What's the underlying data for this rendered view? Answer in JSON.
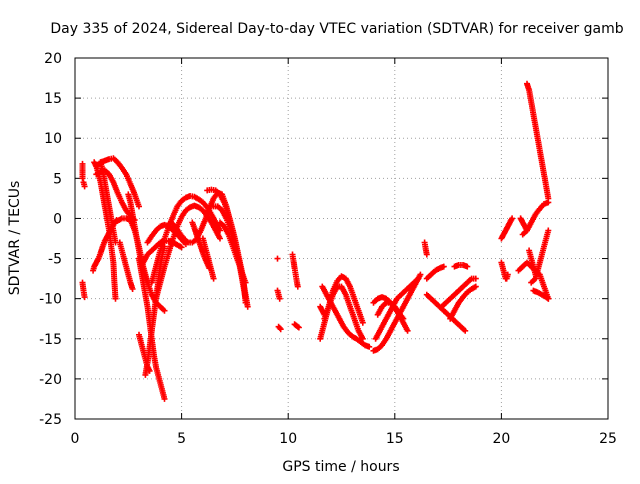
{
  "chart_data": {
    "type": "scatter",
    "title": "Day 335 of 2024, Sidereal Day-to-day VTEC variation (SDTVAR) for receiver gamb",
    "xlabel": "GPS time / hours",
    "ylabel": "SDTVAR / TECUs",
    "xlim": [
      0,
      25
    ],
    "ylim": [
      -25,
      20
    ],
    "xticks": [
      "0",
      "5",
      "10",
      "15",
      "20",
      "25"
    ],
    "yticks": [
      "-25",
      "-20",
      "-15",
      "-10",
      "-5",
      "0",
      "5",
      "10",
      "15",
      "20"
    ],
    "grid": true,
    "marker": "+",
    "color": "#ff0000",
    "series": [
      {
        "name": "s01",
        "x": [
          0.35,
          0.35
        ],
        "y": [
          6.8,
          5.0
        ]
      },
      {
        "name": "s02",
        "x": [
          0.4,
          0.45
        ],
        "y": [
          4.5,
          4.0
        ]
      },
      {
        "name": "s03",
        "x": [
          0.35,
          0.4,
          0.45
        ],
        "y": [
          -8.0,
          -9.0,
          -9.8
        ]
      },
      {
        "name": "s04",
        "x": [
          0.85,
          0.9,
          1.0,
          1.1,
          1.2,
          1.3,
          1.4,
          1.5,
          1.6,
          1.7,
          1.8,
          1.9,
          1.95
        ],
        "y": [
          -6.5,
          -6.0,
          -5.5,
          -5.0,
          -4.3,
          -3.5,
          -2.8,
          -2.3,
          -1.8,
          -1.2,
          -0.8,
          -0.4,
          -0.2
        ]
      },
      {
        "name": "s05",
        "x": [
          0.9,
          1.0,
          1.1,
          1.2,
          1.3,
          1.4,
          1.5,
          1.6,
          1.7,
          1.8,
          1.85,
          1.9
        ],
        "y": [
          7.0,
          6.5,
          5.5,
          4.5,
          3.0,
          1.5,
          0.0,
          -1.5,
          -3.5,
          -5.5,
          -8.0,
          -10.0
        ]
      },
      {
        "name": "s06",
        "x": [
          1.0,
          1.2,
          1.4,
          1.6,
          1.8,
          2.0,
          2.2,
          2.4,
          2.6,
          2.8,
          3.0
        ],
        "y": [
          6.5,
          7.0,
          7.2,
          7.4,
          7.5,
          7.0,
          6.3,
          5.5,
          4.3,
          3.0,
          1.5
        ]
      },
      {
        "name": "s07",
        "x": [
          1.0,
          1.2,
          1.4,
          1.6,
          1.8,
          2.0,
          2.2,
          2.4,
          2.6,
          2.8
        ],
        "y": [
          5.5,
          5.8,
          6.0,
          5.5,
          4.5,
          3.2,
          2.0,
          1.0,
          0.3,
          -0.2
        ]
      },
      {
        "name": "s08",
        "x": [
          1.2,
          1.3,
          1.4,
          1.5,
          1.6,
          1.7,
          1.8,
          1.9
        ],
        "y": [
          7.0,
          6.0,
          4.5,
          3.0,
          1.5,
          0.0,
          -1.5,
          -3.0
        ]
      },
      {
        "name": "s09",
        "x": [
          2.0,
          2.2,
          2.4,
          2.6,
          2.8,
          3.0,
          3.2,
          3.4,
          3.6,
          3.8,
          4.0,
          4.2
        ],
        "y": [
          -0.3,
          0.0,
          0.0,
          -0.2,
          -1.5,
          -3.5,
          -6.0,
          -8.0,
          -9.5,
          -10.5,
          -11.0,
          -11.5
        ]
      },
      {
        "name": "s10",
        "x": [
          2.1,
          2.2,
          2.3,
          2.4,
          2.5,
          2.6,
          2.7
        ],
        "y": [
          -3.0,
          -4.0,
          -5.0,
          -6.0,
          -7.0,
          -8.0,
          -8.8
        ]
      },
      {
        "name": "s11",
        "x": [
          2.5,
          2.6,
          2.7,
          2.8,
          2.9,
          3.0,
          3.1,
          3.2,
          3.4
        ],
        "y": [
          3.0,
          2.0,
          0.5,
          -1.0,
          -2.5,
          -4.0,
          -5.5,
          -6.5,
          -8.0
        ]
      },
      {
        "name": "s12",
        "x": [
          3.0,
          3.1,
          3.2,
          3.3,
          3.4,
          3.5,
          3.6,
          3.7,
          3.8,
          3.9,
          4.0,
          4.1,
          4.2
        ],
        "y": [
          -5.0,
          -6.5,
          -8.0,
          -9.5,
          -11.0,
          -13.0,
          -15.0,
          -17.0,
          -18.5,
          -19.5,
          -20.5,
          -21.5,
          -22.5
        ]
      },
      {
        "name": "s13",
        "x": [
          3.0,
          3.1,
          3.2,
          3.3,
          3.4,
          3.5
        ],
        "y": [
          -14.5,
          -15.5,
          -16.5,
          -17.5,
          -18.5,
          -19.0
        ]
      },
      {
        "name": "s14",
        "x": [
          3.3,
          3.4,
          3.5,
          3.6,
          3.7,
          3.8,
          3.9,
          4.0,
          4.1,
          4.2
        ],
        "y": [
          -19.5,
          -18.0,
          -16.0,
          -14.0,
          -12.0,
          -10.0,
          -8.0,
          -6.0,
          -4.5,
          -3.5
        ]
      },
      {
        "name": "s15",
        "x": [
          3.2,
          3.4,
          3.6,
          3.8,
          4.0,
          4.2,
          4.4,
          4.6,
          4.8,
          5.0
        ],
        "y": [
          -5.5,
          -4.5,
          -4.0,
          -3.5,
          -3.0,
          -2.8,
          -2.8,
          -3.0,
          -3.3,
          -3.6
        ]
      },
      {
        "name": "s16",
        "x": [
          3.4,
          3.6,
          3.8,
          4.0,
          4.2,
          4.4,
          4.6,
          4.8,
          5.0,
          5.2
        ],
        "y": [
          -3.0,
          -2.2,
          -1.5,
          -1.0,
          -0.8,
          -1.0,
          -1.5,
          -2.0,
          -2.6,
          -3.2
        ]
      },
      {
        "name": "s17",
        "x": [
          3.6,
          3.8,
          4.0,
          4.2,
          4.4,
          4.6,
          4.8,
          5.0,
          5.2,
          5.4,
          5.6,
          5.8,
          6.0,
          6.2,
          6.4,
          6.6,
          6.8
        ],
        "y": [
          -8.0,
          -6.0,
          -4.0,
          -2.5,
          -1.0,
          0.3,
          1.5,
          2.2,
          2.6,
          2.8,
          2.7,
          2.4,
          2.0,
          1.4,
          0.5,
          -0.5,
          -1.5
        ]
      },
      {
        "name": "s18",
        "x": [
          3.8,
          4.0,
          4.2,
          4.4,
          4.6,
          4.8,
          5.0,
          5.2,
          5.4,
          5.6,
          5.8,
          6.0,
          6.2,
          6.4,
          6.6,
          6.8
        ],
        "y": [
          -10.0,
          -8.0,
          -6.0,
          -4.2,
          -2.5,
          -1.0,
          0.2,
          1.0,
          1.4,
          1.6,
          1.4,
          1.0,
          0.3,
          -0.5,
          -1.5,
          -2.5
        ]
      },
      {
        "name": "s19",
        "x": [
          4.5,
          4.7,
          4.9,
          5.1,
          5.3,
          5.5,
          5.7,
          5.9,
          6.1,
          6.3,
          6.5,
          6.7,
          6.9,
          7.1,
          7.3,
          7.5,
          7.7,
          7.9,
          8.0
        ],
        "y": [
          -0.5,
          -1.0,
          -1.8,
          -2.5,
          -3.0,
          -3.0,
          -2.6,
          -1.5,
          -0.2,
          1.2,
          2.5,
          3.2,
          3.0,
          1.5,
          -0.5,
          -2.5,
          -5.0,
          -7.5,
          -10.5
        ]
      },
      {
        "name": "s20",
        "x": [
          5.5,
          5.6,
          5.7,
          5.8,
          5.9,
          6.0,
          6.1,
          6.2,
          6.3
        ],
        "y": [
          -0.5,
          -1.2,
          -2.0,
          -2.8,
          -3.5,
          -4.3,
          -5.0,
          -5.6,
          -6.2
        ]
      },
      {
        "name": "s21",
        "x": [
          6.0,
          6.1,
          6.2,
          6.3,
          6.4,
          6.5
        ],
        "y": [
          -2.5,
          -3.5,
          -4.5,
          -5.5,
          -6.5,
          -7.5
        ]
      },
      {
        "name": "s22",
        "x": [
          6.2,
          6.4,
          6.6,
          6.8,
          7.0,
          7.2,
          7.4,
          7.6,
          7.8,
          8.0
        ],
        "y": [
          3.5,
          3.6,
          3.5,
          3.0,
          2.0,
          0.5,
          -1.5,
          -4.0,
          -7.0,
          -10.0
        ]
      },
      {
        "name": "s23",
        "x": [
          6.5,
          6.7,
          6.9,
          7.1,
          7.3,
          7.5,
          7.7,
          7.9,
          8.1
        ],
        "y": [
          1.5,
          1.5,
          1.0,
          0.0,
          -1.5,
          -3.5,
          -5.5,
          -8.0,
          -11.0
        ]
      },
      {
        "name": "s24",
        "x": [
          6.8,
          7.0,
          7.2,
          7.4,
          7.6,
          7.8,
          8.0
        ],
        "y": [
          -0.5,
          -1.0,
          -2.0,
          -3.5,
          -5.0,
          -6.5,
          -8.0
        ]
      },
      {
        "name": "s25",
        "x": [
          9.5,
          9.55,
          9.6
        ],
        "y": [
          -9.0,
          -9.5,
          -10.0
        ]
      },
      {
        "name": "s26",
        "x": [
          9.55,
          9.65
        ],
        "y": [
          -13.5,
          -13.8
        ]
      },
      {
        "name": "s27",
        "x": [
          9.5
        ],
        "y": [
          -5.0
        ]
      },
      {
        "name": "s28",
        "x": [
          10.2,
          10.25,
          10.3,
          10.35,
          10.4,
          10.45
        ],
        "y": [
          -4.5,
          -5.3,
          -6.2,
          -7.0,
          -7.8,
          -8.5
        ]
      },
      {
        "name": "s29",
        "x": [
          10.3,
          10.4,
          10.5
        ],
        "y": [
          -13.2,
          -13.4,
          -13.6
        ]
      },
      {
        "name": "s30",
        "x": [
          11.5,
          11.7,
          11.9,
          12.1,
          12.3,
          12.5,
          12.7,
          12.9,
          13.1,
          13.3,
          13.5
        ],
        "y": [
          -15.0,
          -13.0,
          -11.0,
          -9.0,
          -7.8,
          -7.2,
          -7.5,
          -8.5,
          -10.0,
          -11.5,
          -13.0
        ]
      },
      {
        "name": "s31",
        "x": [
          11.7,
          11.9,
          12.1,
          12.3,
          12.5,
          12.7,
          12.9,
          13.1,
          13.3,
          13.5
        ],
        "y": [
          -12.5,
          -11.0,
          -9.5,
          -8.5,
          -8.5,
          -9.5,
          -11.0,
          -12.5,
          -14.0,
          -15.0
        ]
      },
      {
        "name": "s32",
        "x": [
          11.6,
          11.8,
          12.0,
          12.2,
          12.4,
          12.6,
          12.8,
          13.0,
          13.2,
          13.4,
          13.6,
          13.8
        ],
        "y": [
          -8.5,
          -9.5,
          -10.5,
          -11.5,
          -12.5,
          -13.5,
          -14.2,
          -14.7,
          -15.0,
          -15.4,
          -15.8,
          -16.0
        ]
      },
      {
        "name": "s33",
        "x": [
          11.5,
          11.6,
          11.7
        ],
        "y": [
          -11.0,
          -11.5,
          -12.0
        ]
      },
      {
        "name": "s34",
        "x": [
          14.0,
          14.2,
          14.4,
          14.6,
          14.8,
          15.0,
          15.2,
          15.4,
          15.6,
          15.8,
          16.0,
          16.2
        ],
        "y": [
          -16.5,
          -16.3,
          -15.8,
          -15.0,
          -14.0,
          -13.0,
          -12.0,
          -11.0,
          -10.0,
          -9.0,
          -8.0,
          -7.0
        ]
      },
      {
        "name": "s35",
        "x": [
          14.1,
          14.3,
          14.5,
          14.7,
          14.9,
          15.1,
          15.3,
          15.5,
          15.7,
          15.9,
          16.1
        ],
        "y": [
          -15.0,
          -14.0,
          -13.0,
          -12.0,
          -11.0,
          -10.0,
          -9.5,
          -9.0,
          -8.5,
          -8.0,
          -7.5
        ]
      },
      {
        "name": "s36",
        "x": [
          14.0,
          14.2,
          14.4,
          14.6,
          14.8,
          15.0,
          15.2,
          15.4,
          15.6
        ],
        "y": [
          -10.5,
          -10.0,
          -9.8,
          -10.0,
          -10.5,
          -11.2,
          -12.0,
          -13.0,
          -14.0
        ]
      },
      {
        "name": "s37",
        "x": [
          14.2,
          14.4,
          14.6,
          14.8,
          15.0,
          15.2,
          15.4
        ],
        "y": [
          -12.0,
          -11.0,
          -10.5,
          -10.5,
          -11.0,
          -11.8,
          -12.5
        ]
      },
      {
        "name": "s38",
        "x": [
          16.4,
          16.45,
          16.5
        ],
        "y": [
          -3.0,
          -3.8,
          -4.5
        ]
      },
      {
        "name": "s39",
        "x": [
          16.5,
          16.7,
          16.9,
          17.1,
          17.3,
          17.5,
          17.7,
          17.9,
          18.1,
          18.3
        ],
        "y": [
          -9.5,
          -10.0,
          -10.5,
          -11.0,
          -11.5,
          -12.0,
          -12.5,
          -13.0,
          -13.5,
          -14.0
        ]
      },
      {
        "name": "s40",
        "x": [
          16.5,
          16.7,
          16.9,
          17.1,
          17.3
        ],
        "y": [
          -7.5,
          -7.0,
          -6.5,
          -6.2,
          -6.0
        ]
      },
      {
        "name": "s41",
        "x": [
          17.2,
          17.4,
          17.6,
          17.8,
          18.0,
          18.2,
          18.4,
          18.6,
          18.8
        ],
        "y": [
          -11.0,
          -10.5,
          -10.0,
          -9.5,
          -9.0,
          -8.5,
          -8.0,
          -7.5,
          -7.5
        ]
      },
      {
        "name": "s42",
        "x": [
          17.6,
          17.8,
          18.0,
          18.2,
          18.4,
          18.6,
          18.8
        ],
        "y": [
          -12.5,
          -11.5,
          -10.5,
          -9.8,
          -9.2,
          -8.8,
          -8.5
        ]
      },
      {
        "name": "s43",
        "x": [
          17.8,
          18.0,
          18.2,
          18.4
        ],
        "y": [
          -6.0,
          -5.8,
          -5.8,
          -6.0
        ]
      },
      {
        "name": "s44",
        "x": [
          20.0,
          20.05,
          20.1,
          20.15,
          20.2,
          20.25,
          20.3
        ],
        "y": [
          -5.5,
          -6.0,
          -6.5,
          -7.0,
          -7.5,
          -7.5,
          -7.0
        ]
      },
      {
        "name": "s45",
        "x": [
          20.0,
          20.1,
          20.2,
          20.3,
          20.4,
          20.5
        ],
        "y": [
          -2.5,
          -2.0,
          -1.5,
          -1.0,
          -0.5,
          0.0
        ]
      },
      {
        "name": "s46",
        "x": [
          20.8,
          21.0,
          21.2,
          21.4,
          21.6,
          21.8,
          22.0,
          22.2
        ],
        "y": [
          -6.5,
          -6.0,
          -5.5,
          -6.0,
          -6.5,
          -7.0,
          -8.5,
          -10.0
        ]
      },
      {
        "name": "s47",
        "x": [
          21.2,
          21.3,
          21.4,
          21.5,
          21.6,
          21.7,
          21.8,
          21.9,
          22.0,
          22.1,
          22.2
        ],
        "y": [
          16.8,
          16.0,
          14.5,
          13.0,
          11.5,
          10.0,
          8.5,
          7.0,
          5.5,
          4.0,
          2.5
        ]
      },
      {
        "name": "s48",
        "x": [
          21.0,
          21.2,
          21.4,
          21.6,
          21.8,
          22.0,
          22.2
        ],
        "y": [
          -2.0,
          -1.5,
          -0.5,
          0.5,
          1.2,
          1.8,
          2.0
        ]
      },
      {
        "name": "s49",
        "x": [
          21.4,
          21.6,
          21.8,
          22.0,
          22.2
        ],
        "y": [
          -8.0,
          -7.5,
          -5.5,
          -3.5,
          -1.5
        ]
      },
      {
        "name": "s50",
        "x": [
          20.9,
          21.0,
          21.1,
          21.2
        ],
        "y": [
          0.0,
          -0.5,
          -1.0,
          -1.5
        ]
      },
      {
        "name": "s51",
        "x": [
          21.3,
          21.4,
          21.5,
          21.6
        ],
        "y": [
          -4.0,
          -5.0,
          -6.0,
          -7.0
        ]
      },
      {
        "name": "s52",
        "x": [
          21.5,
          21.7,
          21.9,
          22.1,
          22.2
        ],
        "y": [
          -9.0,
          -9.2,
          -9.5,
          -9.8,
          -10.0
        ]
      }
    ]
  }
}
